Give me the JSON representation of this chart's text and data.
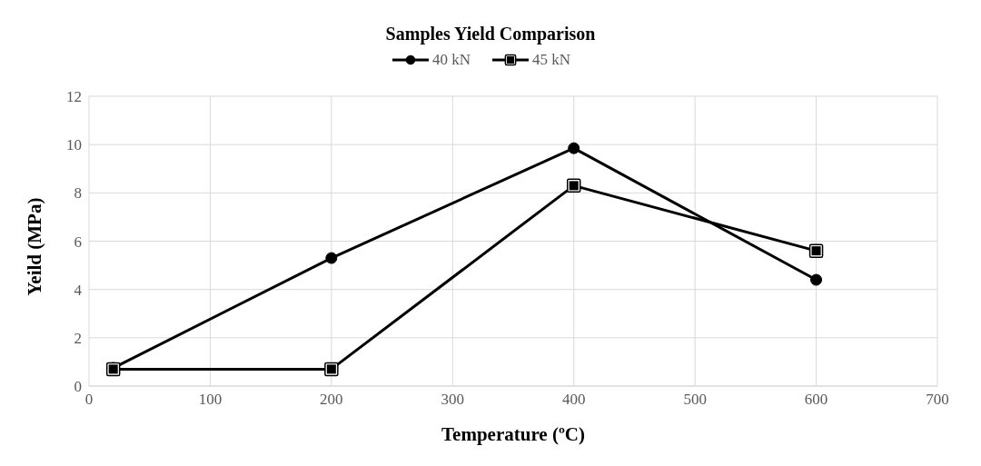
{
  "chart_data": {
    "type": "line",
    "title": "Samples Yield Comparison",
    "xlabel": "Temperature (ºC)",
    "ylabel": "Yeild (MPa)",
    "x": [
      20,
      200,
      400,
      600
    ],
    "series": [
      {
        "name": "40 kN",
        "color": "#000000",
        "marker": "circle",
        "values": [
          0.75,
          5.3,
          9.85,
          4.4
        ]
      },
      {
        "name": "45 kN",
        "color": "#000000",
        "marker": "square",
        "values": [
          0.7,
          0.7,
          8.3,
          5.6
        ]
      }
    ],
    "xlim": [
      0,
      700
    ],
    "xticks": [
      0,
      100,
      200,
      300,
      400,
      500,
      600,
      700
    ],
    "ylim": [
      0,
      12
    ],
    "yticks": [
      0,
      2,
      4,
      6,
      8,
      10,
      12
    ],
    "grid": true,
    "legend": "top",
    "line_style": "solid"
  }
}
